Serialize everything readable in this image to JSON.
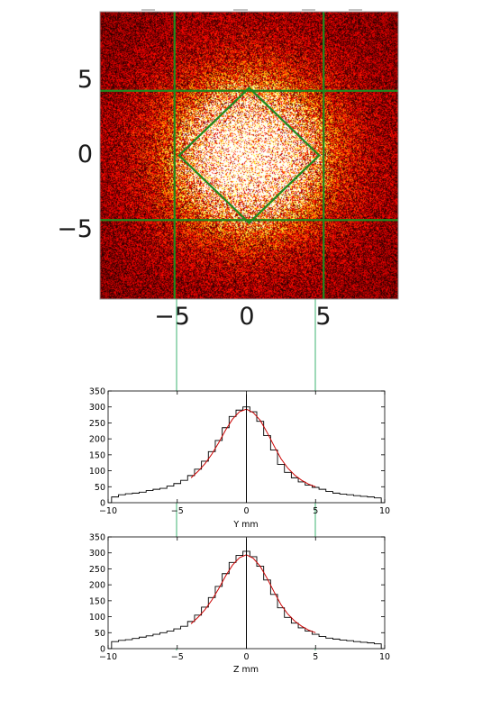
{
  "chart_data": [
    {
      "type": "heatmap",
      "title": "",
      "colormap": "hot",
      "xlim": [
        -10,
        10
      ],
      "ylim": [
        -10,
        10
      ],
      "xticks": [
        "−5",
        "0",
        "5"
      ],
      "yticks": [
        "5",
        "0",
        "−5"
      ],
      "guide_lines": {
        "vertical_x": [
          -5,
          5
        ],
        "horizontal_y": [
          4.5,
          -4.5
        ],
        "diamond_half_width": 4.7,
        "color": "#1f8a1f"
      },
      "spot": {
        "center": [
          0,
          0
        ],
        "sigma": 2.6
      }
    },
    {
      "type": "line",
      "xlabel": "Y mm",
      "ylabel": "",
      "xlim": [
        -10,
        10
      ],
      "ylim": [
        0,
        350
      ],
      "xticks": [
        "−10",
        "−5",
        "0",
        "5",
        "10"
      ],
      "yticks": [
        "0",
        "50",
        "100",
        "150",
        "200",
        "250",
        "300",
        "350"
      ],
      "series": [
        {
          "kind": "histogram",
          "color": "#000000",
          "x": [
            -9.5,
            -9,
            -8.5,
            -8,
            -7.5,
            -7,
            -6.5,
            -6,
            -5.5,
            -5,
            -4.5,
            -4,
            -3.5,
            -3,
            -2.5,
            -2,
            -1.5,
            -1,
            -0.5,
            0,
            0.5,
            1,
            1.5,
            2,
            2.5,
            3,
            3.5,
            4,
            4.5,
            5,
            5.5,
            6,
            6.5,
            7,
            7.5,
            8,
            8.5,
            9,
            9.5
          ],
          "y": [
            18,
            25,
            28,
            30,
            33,
            38,
            42,
            45,
            52,
            60,
            70,
            85,
            105,
            130,
            160,
            195,
            235,
            270,
            290,
            300,
            285,
            255,
            210,
            165,
            120,
            95,
            78,
            65,
            55,
            48,
            42,
            35,
            30,
            27,
            25,
            22,
            20,
            18,
            15
          ]
        },
        {
          "kind": "fit",
          "color": "#cc0000",
          "x": [
            -4,
            -3.5,
            -3,
            -2.5,
            -2,
            -1.5,
            -1,
            -0.5,
            0,
            0.5,
            1,
            1.5,
            2,
            2.5,
            3,
            3.5,
            4,
            4.5,
            5
          ],
          "y": [
            78,
            98,
            122,
            152,
            188,
            228,
            262,
            285,
            293,
            282,
            258,
            220,
            178,
            138,
            108,
            86,
            70,
            58,
            50
          ]
        }
      ],
      "spike": {
        "x": 0,
        "y": 340
      }
    },
    {
      "type": "line",
      "xlabel": "Z mm",
      "ylabel": "",
      "xlim": [
        -10,
        10
      ],
      "ylim": [
        0,
        350
      ],
      "xticks": [
        "−10",
        "−5",
        "0",
        "5",
        "10"
      ],
      "yticks": [
        "0",
        "50",
        "100",
        "150",
        "200",
        "250",
        "300",
        "350"
      ],
      "series": [
        {
          "kind": "histogram",
          "color": "#000000",
          "x": [
            -9.5,
            -9,
            -8.5,
            -8,
            -7.5,
            -7,
            -6.5,
            -6,
            -5.5,
            -5,
            -4.5,
            -4,
            -3.5,
            -3,
            -2.5,
            -2,
            -1.5,
            -1,
            -0.5,
            0,
            0.5,
            1,
            1.5,
            2,
            2.5,
            3,
            3.5,
            4,
            4.5,
            5,
            5.5,
            6,
            6.5,
            7,
            7.5,
            8,
            8.5,
            9,
            9.5
          ],
          "y": [
            22,
            26,
            28,
            32,
            36,
            40,
            45,
            50,
            55,
            62,
            70,
            85,
            105,
            130,
            160,
            195,
            235,
            270,
            292,
            305,
            288,
            258,
            215,
            170,
            128,
            98,
            80,
            65,
            55,
            45,
            38,
            33,
            30,
            27,
            25,
            22,
            20,
            18,
            15
          ]
        },
        {
          "kind": "fit",
          "color": "#cc0000",
          "x": [
            -4,
            -3.5,
            -3,
            -2.5,
            -2,
            -1.5,
            -1,
            -0.5,
            0,
            0.5,
            1,
            1.5,
            2,
            2.5,
            3,
            3.5,
            4,
            4.5,
            5
          ],
          "y": [
            78,
            98,
            122,
            152,
            188,
            228,
            262,
            285,
            294,
            283,
            258,
            220,
            178,
            138,
            108,
            86,
            70,
            58,
            50
          ]
        }
      ],
      "spike": {
        "x": 0,
        "y": 345
      }
    }
  ]
}
